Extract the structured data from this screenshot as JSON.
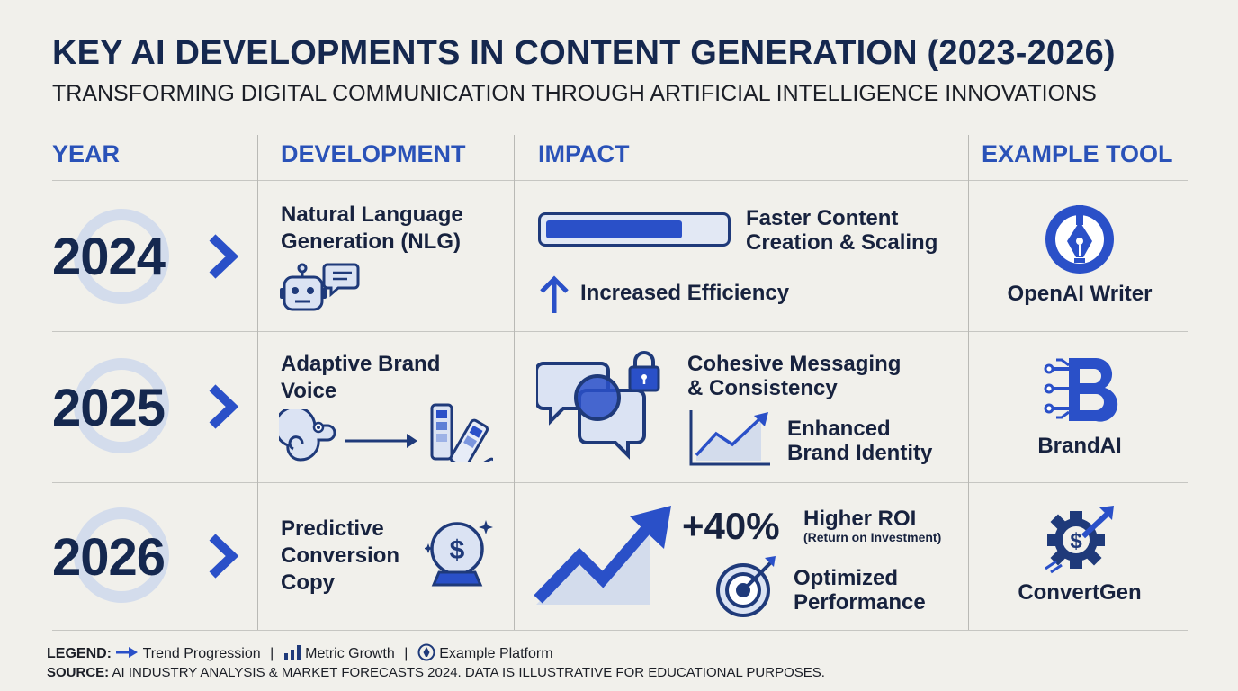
{
  "title": "KEY AI DEVELOPMENTS IN CONTENT GENERATION (2023-2026)",
  "subtitle": "TRANSFORMING DIGITAL COMMUNICATION THROUGH ARTIFICIAL INTELLIGENCE INNOVATIONS",
  "headers": {
    "year": "YEAR",
    "development": "DEVELOPMENT",
    "impact": "IMPACT",
    "tool": "EXAMPLE TOOL"
  },
  "rows": [
    {
      "year": "2024",
      "development": [
        "Natural Language",
        "Generation (NLG)"
      ],
      "impacts": [
        "Faster Content",
        "Creation & Scaling",
        "Increased Efficiency"
      ],
      "progress_fraction": 0.77,
      "tool": "OpenAI Writer"
    },
    {
      "year": "2025",
      "development": [
        "Adaptive Brand",
        "Voice"
      ],
      "impacts": [
        "Cohesive Messaging",
        "& Consistency",
        "Enhanced",
        "Brand Identity"
      ],
      "tool": "BrandAI"
    },
    {
      "year": "2026",
      "development": [
        "Predictive",
        "Conversion",
        "Copy"
      ],
      "impacts": [
        "+40%",
        "Higher ROI",
        "(Return on Investment)",
        "Optimized",
        "Performance"
      ],
      "tool": "ConvertGen"
    }
  ],
  "legend": {
    "label": "LEGEND:",
    "trend": "Trend Progression",
    "metric": "Metric Growth",
    "platform": "Example Platform",
    "separator": "|"
  },
  "source": {
    "label": "SOURCE:",
    "text": "AI INDUSTRY ANALYSIS & MARKET FORECASTS 2024. DATA IS ILLUSTRATIVE FOR EDUCATIONAL PURPOSES."
  },
  "colors": {
    "navy": "#15284f",
    "accent": "#2a52b8",
    "bright": "#2a50c8",
    "light": "#d3dcec"
  }
}
